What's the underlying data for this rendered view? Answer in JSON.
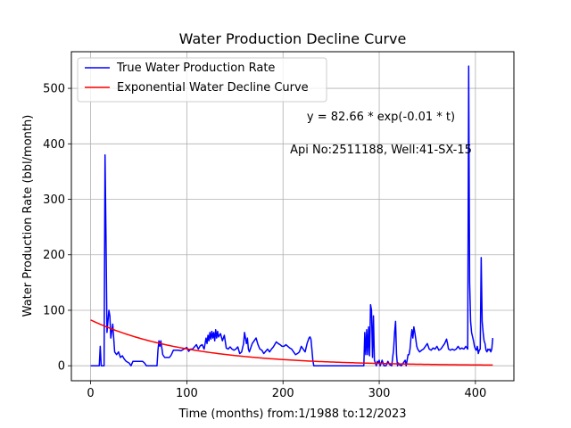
{
  "chart_data": {
    "type": "line",
    "title": "Water Production Decline Curve",
    "xlabel": "Time (months) from:1/1988 to:12/2023",
    "ylabel": "Water Production Rate (bbl/month)",
    "xlim": [
      -20,
      440
    ],
    "ylim": [
      -27,
      566
    ],
    "xticks": [
      0,
      100,
      200,
      300,
      400
    ],
    "yticks": [
      0,
      100,
      200,
      300,
      400,
      500
    ],
    "grid": true,
    "legend_position": "upper-left",
    "annotations": [
      "y = 82.66 * exp(-0.01 * t)",
      "Api No:2511188, Well:41-SX-15"
    ],
    "series": [
      {
        "name": "True Water Production Rate",
        "color": "#0000ff",
        "points": [
          [
            0,
            0
          ],
          [
            9,
            0
          ],
          [
            10,
            35
          ],
          [
            11,
            0
          ],
          [
            14,
            0
          ],
          [
            15,
            380
          ],
          [
            16,
            230
          ],
          [
            17,
            60
          ],
          [
            19,
            100
          ],
          [
            20,
            90
          ],
          [
            21,
            50
          ],
          [
            23,
            75
          ],
          [
            25,
            25
          ],
          [
            27,
            20
          ],
          [
            29,
            25
          ],
          [
            31,
            15
          ],
          [
            33,
            18
          ],
          [
            35,
            12
          ],
          [
            37,
            8
          ],
          [
            40,
            5
          ],
          [
            42,
            0
          ],
          [
            44,
            8
          ],
          [
            46,
            8
          ],
          [
            50,
            8
          ],
          [
            54,
            8
          ],
          [
            56,
            5
          ],
          [
            58,
            0
          ],
          [
            64,
            0
          ],
          [
            69,
            0
          ],
          [
            70,
            28
          ],
          [
            71,
            45
          ],
          [
            72,
            35
          ],
          [
            73,
            45
          ],
          [
            75,
            20
          ],
          [
            77,
            15
          ],
          [
            79,
            15
          ],
          [
            82,
            15
          ],
          [
            84,
            20
          ],
          [
            86,
            28
          ],
          [
            88,
            28
          ],
          [
            91,
            28
          ],
          [
            94,
            27
          ],
          [
            97,
            30
          ],
          [
            100,
            33
          ],
          [
            102,
            26
          ],
          [
            104,
            30
          ],
          [
            106,
            30
          ],
          [
            108,
            34
          ],
          [
            110,
            38
          ],
          [
            112,
            30
          ],
          [
            114,
            36
          ],
          [
            116,
            38
          ],
          [
            118,
            30
          ],
          [
            120,
            50
          ],
          [
            121,
            40
          ],
          [
            122,
            55
          ],
          [
            123,
            45
          ],
          [
            124,
            60
          ],
          [
            125,
            48
          ],
          [
            126,
            62
          ],
          [
            127,
            50
          ],
          [
            128,
            60
          ],
          [
            129,
            45
          ],
          [
            130,
            65
          ],
          [
            131,
            50
          ],
          [
            132,
            62
          ],
          [
            133,
            52
          ],
          [
            135,
            58
          ],
          [
            137,
            45
          ],
          [
            139,
            55
          ],
          [
            141,
            32
          ],
          [
            143,
            30
          ],
          [
            145,
            34
          ],
          [
            147,
            30
          ],
          [
            149,
            28
          ],
          [
            151,
            30
          ],
          [
            153,
            34
          ],
          [
            155,
            22
          ],
          [
            157,
            25
          ],
          [
            159,
            40
          ],
          [
            160,
            60
          ],
          [
            161,
            50
          ],
          [
            162,
            40
          ],
          [
            163,
            50
          ],
          [
            164,
            30
          ],
          [
            165,
            25
          ],
          [
            166,
            30
          ],
          [
            168,
            40
          ],
          [
            170,
            45
          ],
          [
            172,
            50
          ],
          [
            174,
            38
          ],
          [
            176,
            30
          ],
          [
            178,
            28
          ],
          [
            180,
            22
          ],
          [
            182,
            26
          ],
          [
            184,
            30
          ],
          [
            186,
            25
          ],
          [
            188,
            30
          ],
          [
            190,
            34
          ],
          [
            192,
            40
          ],
          [
            193,
            43
          ],
          [
            195,
            40
          ],
          [
            197,
            38
          ],
          [
            199,
            35
          ],
          [
            201,
            35
          ],
          [
            203,
            38
          ],
          [
            205,
            35
          ],
          [
            207,
            32
          ],
          [
            209,
            30
          ],
          [
            211,
            25
          ],
          [
            213,
            20
          ],
          [
            215,
            22
          ],
          [
            217,
            25
          ],
          [
            219,
            35
          ],
          [
            221,
            30
          ],
          [
            223,
            25
          ],
          [
            225,
            40
          ],
          [
            227,
            50
          ],
          [
            228,
            52
          ],
          [
            229,
            48
          ],
          [
            230,
            30
          ],
          [
            231,
            10
          ],
          [
            232,
            0
          ],
          [
            240,
            0
          ],
          [
            250,
            0
          ],
          [
            260,
            0
          ],
          [
            270,
            0
          ],
          [
            280,
            0
          ],
          [
            284,
            0
          ],
          [
            285,
            60
          ],
          [
            286,
            20
          ],
          [
            287,
            65
          ],
          [
            288,
            20
          ],
          [
            289,
            70
          ],
          [
            290,
            18
          ],
          [
            291,
            110
          ],
          [
            292,
            100
          ],
          [
            293,
            15
          ],
          [
            294,
            90
          ],
          [
            295,
            10
          ],
          [
            296,
            5
          ],
          [
            297,
            0
          ],
          [
            298,
            8
          ],
          [
            299,
            5
          ],
          [
            300,
            10
          ],
          [
            301,
            0
          ],
          [
            302,
            5
          ],
          [
            303,
            10
          ],
          [
            304,
            5
          ],
          [
            305,
            0
          ],
          [
            307,
            0
          ],
          [
            309,
            8
          ],
          [
            311,
            2
          ],
          [
            313,
            0
          ],
          [
            315,
            30
          ],
          [
            316,
            60
          ],
          [
            317,
            80
          ],
          [
            318,
            20
          ],
          [
            319,
            0
          ],
          [
            320,
            5
          ],
          [
            321,
            2
          ],
          [
            323,
            0
          ],
          [
            325,
            5
          ],
          [
            327,
            10
          ],
          [
            328,
            0
          ],
          [
            329,
            10
          ],
          [
            330,
            20
          ],
          [
            331,
            20
          ],
          [
            332,
            30
          ],
          [
            333,
            50
          ],
          [
            334,
            65
          ],
          [
            335,
            50
          ],
          [
            336,
            70
          ],
          [
            337,
            60
          ],
          [
            338,
            48
          ],
          [
            339,
            35
          ],
          [
            340,
            30
          ],
          [
            342,
            25
          ],
          [
            344,
            28
          ],
          [
            346,
            30
          ],
          [
            348,
            35
          ],
          [
            350,
            40
          ],
          [
            352,
            30
          ],
          [
            354,
            28
          ],
          [
            356,
            32
          ],
          [
            358,
            30
          ],
          [
            360,
            35
          ],
          [
            362,
            28
          ],
          [
            364,
            30
          ],
          [
            366,
            35
          ],
          [
            368,
            40
          ],
          [
            370,
            48
          ],
          [
            371,
            40
          ],
          [
            372,
            30
          ],
          [
            374,
            28
          ],
          [
            376,
            30
          ],
          [
            378,
            28
          ],
          [
            380,
            30
          ],
          [
            382,
            35
          ],
          [
            384,
            30
          ],
          [
            386,
            32
          ],
          [
            388,
            30
          ],
          [
            390,
            35
          ],
          [
            392,
            30
          ],
          [
            393,
            540
          ],
          [
            394,
            150
          ],
          [
            395,
            80
          ],
          [
            396,
            60
          ],
          [
            398,
            45
          ],
          [
            399,
            35
          ],
          [
            400,
            30
          ],
          [
            401,
            28
          ],
          [
            402,
            35
          ],
          [
            403,
            22
          ],
          [
            404,
            28
          ],
          [
            405,
            30
          ],
          [
            406,
            195
          ],
          [
            407,
            80
          ],
          [
            408,
            60
          ],
          [
            409,
            45
          ],
          [
            410,
            40
          ],
          [
            411,
            28
          ],
          [
            412,
            25
          ],
          [
            413,
            30
          ],
          [
            414,
            28
          ],
          [
            415,
            30
          ],
          [
            416,
            25
          ],
          [
            417,
            30
          ],
          [
            418,
            50
          ]
        ]
      },
      {
        "name": "Exponential Water Decline Curve",
        "color": "#ff0000",
        "function": {
          "a": 82.66,
          "b": 0.01
        },
        "x_range": [
          0,
          418
        ]
      }
    ]
  }
}
